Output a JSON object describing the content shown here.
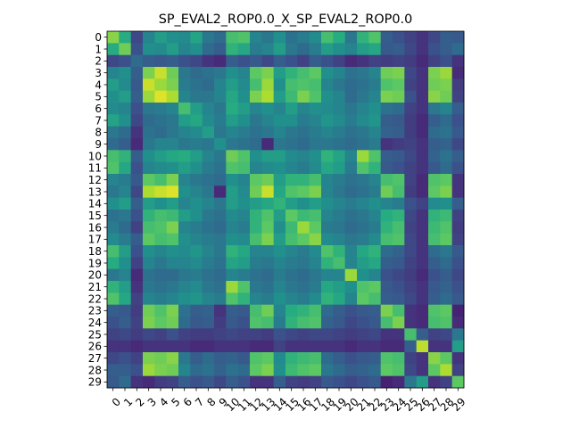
{
  "chart_data": {
    "type": "heatmap",
    "title": "SP_EVAL2_ROP0.0_X_SP_EVAL2_ROP0.0",
    "x_tick_labels": [
      "0",
      "1",
      "2",
      "3",
      "4",
      "5",
      "6",
      "7",
      "8",
      "9",
      "10",
      "11",
      "12",
      "13",
      "14",
      "15",
      "16",
      "17",
      "18",
      "19",
      "20",
      "21",
      "22",
      "23",
      "24",
      "25",
      "26",
      "27",
      "28",
      "29"
    ],
    "y_tick_labels": [
      "0",
      "1",
      "2",
      "3",
      "4",
      "5",
      "6",
      "7",
      "8",
      "9",
      "10",
      "11",
      "12",
      "13",
      "14",
      "15",
      "16",
      "17",
      "18",
      "19",
      "20",
      "21",
      "22",
      "23",
      "24",
      "25",
      "26",
      "27",
      "28",
      "29"
    ],
    "colormap": "viridis",
    "values": [
      [
        0.82,
        0.62,
        0.22,
        0.45,
        0.55,
        0.5,
        0.48,
        0.58,
        0.4,
        0.35,
        0.7,
        0.72,
        0.45,
        0.4,
        0.5,
        0.38,
        0.42,
        0.48,
        0.7,
        0.62,
        0.4,
        0.65,
        0.72,
        0.3,
        0.25,
        0.2,
        0.15,
        0.22,
        0.3,
        0.28
      ],
      [
        0.62,
        0.78,
        0.25,
        0.5,
        0.48,
        0.55,
        0.45,
        0.5,
        0.35,
        0.3,
        0.65,
        0.6,
        0.42,
        0.45,
        0.55,
        0.4,
        0.35,
        0.42,
        0.55,
        0.5,
        0.45,
        0.55,
        0.6,
        0.28,
        0.3,
        0.22,
        0.15,
        0.25,
        0.3,
        0.35
      ],
      [
        0.22,
        0.25,
        0.35,
        0.3,
        0.28,
        0.3,
        0.25,
        0.22,
        0.15,
        0.12,
        0.3,
        0.25,
        0.28,
        0.22,
        0.3,
        0.25,
        0.2,
        0.3,
        0.25,
        0.2,
        0.12,
        0.15,
        0.2,
        0.18,
        0.2,
        0.18,
        0.12,
        0.2,
        0.25,
        0.15
      ],
      [
        0.45,
        0.5,
        0.3,
        0.8,
        0.92,
        0.78,
        0.4,
        0.35,
        0.38,
        0.4,
        0.5,
        0.45,
        0.75,
        0.8,
        0.55,
        0.65,
        0.7,
        0.75,
        0.5,
        0.45,
        0.38,
        0.4,
        0.45,
        0.78,
        0.8,
        0.22,
        0.15,
        0.8,
        0.85,
        0.12
      ],
      [
        0.55,
        0.48,
        0.28,
        0.92,
        0.85,
        0.8,
        0.42,
        0.38,
        0.35,
        0.45,
        0.55,
        0.48,
        0.7,
        0.85,
        0.5,
        0.7,
        0.72,
        0.7,
        0.45,
        0.4,
        0.35,
        0.38,
        0.42,
        0.72,
        0.75,
        0.2,
        0.15,
        0.78,
        0.8,
        0.18
      ],
      [
        0.5,
        0.55,
        0.3,
        0.85,
        0.95,
        0.88,
        0.45,
        0.4,
        0.4,
        0.45,
        0.6,
        0.5,
        0.8,
        0.88,
        0.55,
        0.68,
        0.8,
        0.72,
        0.5,
        0.45,
        0.35,
        0.4,
        0.45,
        0.8,
        0.78,
        0.25,
        0.15,
        0.82,
        0.78,
        0.2
      ],
      [
        0.48,
        0.45,
        0.25,
        0.4,
        0.42,
        0.45,
        0.7,
        0.55,
        0.45,
        0.4,
        0.62,
        0.55,
        0.45,
        0.5,
        0.45,
        0.55,
        0.45,
        0.5,
        0.48,
        0.45,
        0.4,
        0.45,
        0.5,
        0.38,
        0.35,
        0.2,
        0.15,
        0.4,
        0.45,
        0.3
      ],
      [
        0.58,
        0.5,
        0.22,
        0.35,
        0.38,
        0.4,
        0.55,
        0.6,
        0.48,
        0.42,
        0.55,
        0.5,
        0.4,
        0.45,
        0.5,
        0.5,
        0.42,
        0.45,
        0.52,
        0.48,
        0.42,
        0.48,
        0.52,
        0.3,
        0.28,
        0.18,
        0.12,
        0.3,
        0.35,
        0.25
      ],
      [
        0.4,
        0.35,
        0.15,
        0.38,
        0.35,
        0.4,
        0.45,
        0.48,
        0.55,
        0.4,
        0.45,
        0.42,
        0.38,
        0.4,
        0.45,
        0.4,
        0.38,
        0.42,
        0.45,
        0.42,
        0.38,
        0.4,
        0.45,
        0.32,
        0.3,
        0.18,
        0.12,
        0.35,
        0.38,
        0.28
      ],
      [
        0.35,
        0.3,
        0.12,
        0.4,
        0.45,
        0.45,
        0.4,
        0.42,
        0.4,
        0.5,
        0.4,
        0.38,
        0.35,
        0.12,
        0.4,
        0.38,
        0.35,
        0.4,
        0.4,
        0.38,
        0.35,
        0.38,
        0.42,
        0.15,
        0.18,
        0.2,
        0.15,
        0.3,
        0.32,
        0.22
      ],
      [
        0.7,
        0.65,
        0.3,
        0.5,
        0.55,
        0.6,
        0.62,
        0.55,
        0.45,
        0.4,
        0.78,
        0.72,
        0.5,
        0.55,
        0.55,
        0.48,
        0.45,
        0.5,
        0.65,
        0.58,
        0.45,
        0.85,
        0.72,
        0.3,
        0.28,
        0.22,
        0.15,
        0.32,
        0.38,
        0.3
      ],
      [
        0.72,
        0.6,
        0.25,
        0.45,
        0.48,
        0.5,
        0.55,
        0.5,
        0.42,
        0.38,
        0.72,
        0.7,
        0.45,
        0.48,
        0.5,
        0.45,
        0.42,
        0.48,
        0.6,
        0.55,
        0.42,
        0.72,
        0.65,
        0.28,
        0.25,
        0.2,
        0.15,
        0.28,
        0.35,
        0.25
      ],
      [
        0.45,
        0.42,
        0.28,
        0.75,
        0.7,
        0.8,
        0.45,
        0.4,
        0.38,
        0.35,
        0.5,
        0.45,
        0.75,
        0.78,
        0.55,
        0.65,
        0.65,
        0.7,
        0.45,
        0.42,
        0.38,
        0.4,
        0.45,
        0.7,
        0.72,
        0.2,
        0.12,
        0.72,
        0.75,
        0.15
      ],
      [
        0.4,
        0.45,
        0.22,
        0.88,
        0.92,
        0.95,
        0.5,
        0.45,
        0.4,
        0.12,
        0.55,
        0.48,
        0.78,
        0.92,
        0.6,
        0.72,
        0.75,
        0.8,
        0.45,
        0.4,
        0.35,
        0.38,
        0.42,
        0.78,
        0.7,
        0.18,
        0.12,
        0.75,
        0.8,
        0.15
      ],
      [
        0.5,
        0.55,
        0.3,
        0.55,
        0.5,
        0.55,
        0.45,
        0.5,
        0.45,
        0.4,
        0.55,
        0.5,
        0.55,
        0.6,
        0.65,
        0.55,
        0.5,
        0.55,
        0.5,
        0.45,
        0.42,
        0.45,
        0.5,
        0.45,
        0.42,
        0.25,
        0.2,
        0.48,
        0.5,
        0.3
      ],
      [
        0.38,
        0.4,
        0.25,
        0.65,
        0.7,
        0.68,
        0.55,
        0.5,
        0.4,
        0.38,
        0.48,
        0.45,
        0.65,
        0.72,
        0.55,
        0.75,
        0.68,
        0.7,
        0.45,
        0.42,
        0.38,
        0.4,
        0.45,
        0.62,
        0.65,
        0.22,
        0.15,
        0.65,
        0.68,
        0.2
      ],
      [
        0.42,
        0.35,
        0.2,
        0.7,
        0.72,
        0.8,
        0.45,
        0.42,
        0.38,
        0.35,
        0.45,
        0.42,
        0.65,
        0.75,
        0.5,
        0.68,
        0.85,
        0.75,
        0.42,
        0.4,
        0.35,
        0.38,
        0.42,
        0.65,
        0.7,
        0.2,
        0.15,
        0.68,
        0.72,
        0.18
      ],
      [
        0.48,
        0.42,
        0.3,
        0.75,
        0.7,
        0.72,
        0.5,
        0.45,
        0.42,
        0.4,
        0.5,
        0.48,
        0.7,
        0.8,
        0.55,
        0.7,
        0.75,
        0.82,
        0.48,
        0.45,
        0.4,
        0.42,
        0.48,
        0.7,
        0.72,
        0.22,
        0.15,
        0.7,
        0.75,
        0.2
      ],
      [
        0.7,
        0.55,
        0.25,
        0.5,
        0.45,
        0.5,
        0.48,
        0.52,
        0.45,
        0.4,
        0.65,
        0.6,
        0.45,
        0.45,
        0.5,
        0.45,
        0.42,
        0.48,
        0.72,
        0.65,
        0.45,
        0.6,
        0.65,
        0.35,
        0.32,
        0.22,
        0.15,
        0.35,
        0.4,
        0.28
      ],
      [
        0.62,
        0.5,
        0.2,
        0.45,
        0.4,
        0.45,
        0.45,
        0.48,
        0.42,
        0.38,
        0.58,
        0.55,
        0.42,
        0.4,
        0.45,
        0.42,
        0.4,
        0.45,
        0.65,
        0.7,
        0.45,
        0.55,
        0.6,
        0.3,
        0.28,
        0.2,
        0.15,
        0.3,
        0.35,
        0.25
      ],
      [
        0.4,
        0.45,
        0.12,
        0.38,
        0.35,
        0.35,
        0.4,
        0.42,
        0.38,
        0.35,
        0.45,
        0.42,
        0.38,
        0.35,
        0.42,
        0.38,
        0.35,
        0.4,
        0.45,
        0.45,
        0.85,
        0.5,
        0.45,
        0.25,
        0.22,
        0.18,
        0.12,
        0.25,
        0.3,
        0.22
      ],
      [
        0.65,
        0.55,
        0.15,
        0.4,
        0.38,
        0.4,
        0.45,
        0.48,
        0.4,
        0.38,
        0.85,
        0.72,
        0.4,
        0.38,
        0.45,
        0.4,
        0.38,
        0.42,
        0.6,
        0.55,
        0.5,
        0.72,
        0.75,
        0.28,
        0.25,
        0.2,
        0.15,
        0.28,
        0.32,
        0.25
      ],
      [
        0.72,
        0.6,
        0.2,
        0.45,
        0.42,
        0.45,
        0.5,
        0.52,
        0.45,
        0.42,
        0.72,
        0.65,
        0.45,
        0.42,
        0.5,
        0.45,
        0.42,
        0.48,
        0.65,
        0.6,
        0.45,
        0.75,
        0.7,
        0.3,
        0.28,
        0.22,
        0.15,
        0.3,
        0.35,
        0.28
      ],
      [
        0.3,
        0.28,
        0.18,
        0.78,
        0.72,
        0.8,
        0.38,
        0.3,
        0.32,
        0.15,
        0.3,
        0.28,
        0.7,
        0.78,
        0.45,
        0.62,
        0.65,
        0.7,
        0.35,
        0.3,
        0.25,
        0.28,
        0.3,
        0.8,
        0.7,
        0.15,
        0.12,
        0.72,
        0.75,
        0.1
      ],
      [
        0.25,
        0.3,
        0.2,
        0.8,
        0.75,
        0.78,
        0.35,
        0.28,
        0.3,
        0.18,
        0.28,
        0.25,
        0.72,
        0.7,
        0.42,
        0.65,
        0.7,
        0.72,
        0.32,
        0.28,
        0.22,
        0.25,
        0.28,
        0.7,
        0.8,
        0.15,
        0.12,
        0.7,
        0.72,
        0.12
      ],
      [
        0.2,
        0.22,
        0.18,
        0.22,
        0.2,
        0.25,
        0.2,
        0.18,
        0.18,
        0.2,
        0.22,
        0.2,
        0.2,
        0.18,
        0.25,
        0.22,
        0.2,
        0.22,
        0.22,
        0.2,
        0.18,
        0.2,
        0.22,
        0.15,
        0.15,
        0.7,
        0.3,
        0.2,
        0.22,
        0.4
      ],
      [
        0.15,
        0.15,
        0.12,
        0.15,
        0.15,
        0.15,
        0.15,
        0.12,
        0.12,
        0.15,
        0.15,
        0.15,
        0.12,
        0.12,
        0.2,
        0.15,
        0.15,
        0.15,
        0.15,
        0.15,
        0.12,
        0.15,
        0.15,
        0.12,
        0.12,
        0.3,
        0.9,
        0.15,
        0.15,
        0.55
      ],
      [
        0.22,
        0.25,
        0.2,
        0.8,
        0.78,
        0.82,
        0.4,
        0.3,
        0.35,
        0.3,
        0.32,
        0.28,
        0.72,
        0.75,
        0.48,
        0.65,
        0.68,
        0.7,
        0.35,
        0.3,
        0.25,
        0.28,
        0.3,
        0.72,
        0.7,
        0.2,
        0.15,
        0.82,
        0.75,
        0.15
      ],
      [
        0.3,
        0.3,
        0.25,
        0.85,
        0.8,
        0.78,
        0.45,
        0.35,
        0.38,
        0.32,
        0.38,
        0.35,
        0.75,
        0.8,
        0.5,
        0.68,
        0.72,
        0.75,
        0.4,
        0.35,
        0.3,
        0.32,
        0.35,
        0.75,
        0.72,
        0.22,
        0.15,
        0.75,
        0.88,
        0.2
      ],
      [
        0.28,
        0.35,
        0.15,
        0.12,
        0.18,
        0.2,
        0.3,
        0.25,
        0.28,
        0.22,
        0.3,
        0.25,
        0.15,
        0.15,
        0.3,
        0.2,
        0.18,
        0.2,
        0.28,
        0.25,
        0.22,
        0.25,
        0.28,
        0.1,
        0.12,
        0.4,
        0.55,
        0.15,
        0.2,
        0.75
      ]
    ]
  }
}
